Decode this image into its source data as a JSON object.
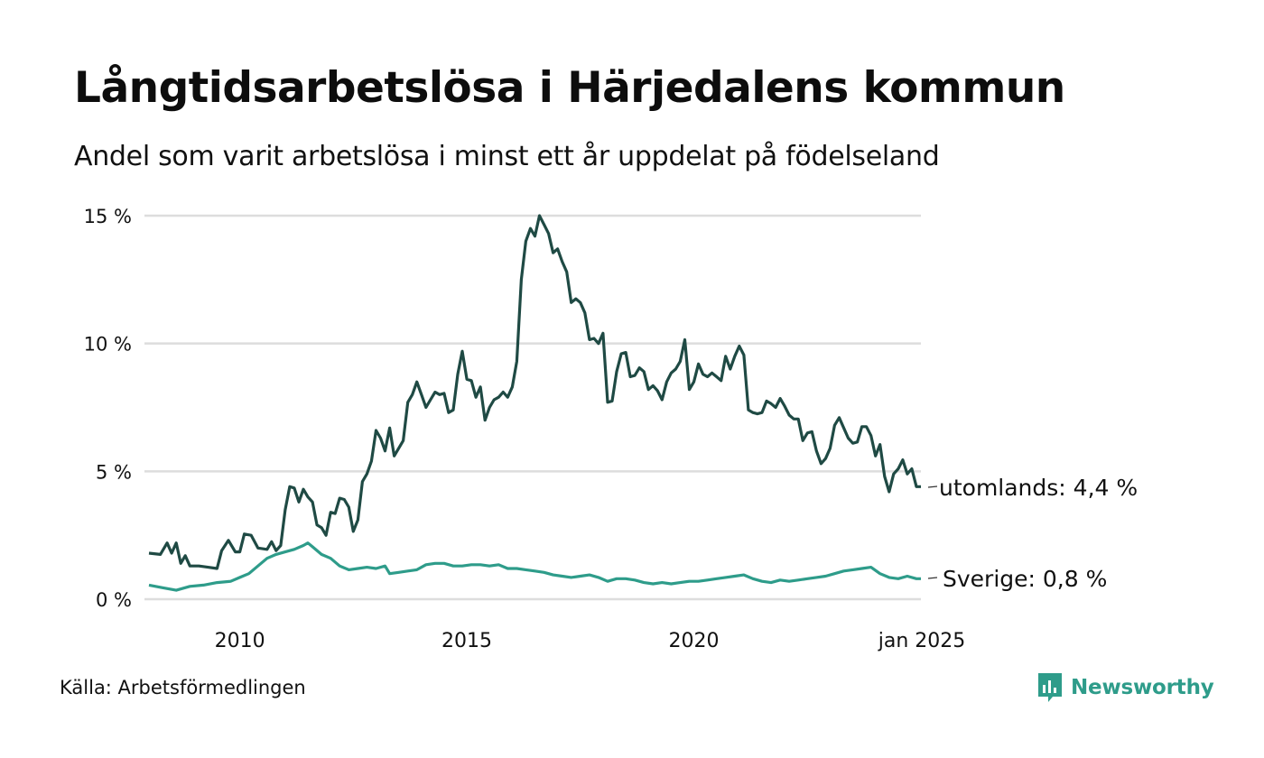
{
  "title": "Långtidsarbetslösa i Härjedalens kommun",
  "subtitle": "Andel som varit arbetslösa i minst ett år uppdelat på födelseland",
  "source": "Källa: Arbetsförmedlingen",
  "brand": {
    "name": "Newsworthy",
    "icon": "newsworthy-logo-icon",
    "color": "#2e9c8a"
  },
  "chart_data": {
    "type": "line",
    "title": "Långtidsarbetslösa i Härjedalens kommun",
    "subtitle": "Andel som varit arbetslösa i minst ett år uppdelat på födelseland",
    "x_axis": {
      "ticks": [
        {
          "label": "2010",
          "value": 2010.0
        },
        {
          "label": "2015",
          "value": 2015.0
        },
        {
          "label": "2020",
          "value": 2020.0
        },
        {
          "label": "jan 2025",
          "value": 2025.0
        }
      ],
      "range": [
        2008.0,
        2025.0
      ]
    },
    "y_axis": {
      "ticks": [
        {
          "label": "0 %",
          "value": 0
        },
        {
          "label": "5 %",
          "value": 5
        },
        {
          "label": "10 %",
          "value": 10
        },
        {
          "label": "15 %",
          "value": 15
        }
      ],
      "range": [
        0,
        15
      ],
      "unit": "%"
    },
    "grid": {
      "horizontal": true,
      "vertical": false,
      "color": "#dddddd"
    },
    "legend": "end-of-line labels",
    "series": [
      {
        "name": "utomlands",
        "end_label": "utomlands: 4,4 %",
        "color": "#1f4a44",
        "points": [
          [
            2008.0,
            1.8
          ],
          [
            2008.25,
            1.75
          ],
          [
            2008.4,
            2.2
          ],
          [
            2008.5,
            1.8
          ],
          [
            2008.6,
            2.2
          ],
          [
            2008.7,
            1.4
          ],
          [
            2008.8,
            1.7
          ],
          [
            2008.9,
            1.3
          ],
          [
            2009.1,
            1.3
          ],
          [
            2009.3,
            1.25
          ],
          [
            2009.5,
            1.2
          ],
          [
            2009.6,
            1.9
          ],
          [
            2009.75,
            2.3
          ],
          [
            2009.9,
            1.85
          ],
          [
            2010.0,
            1.85
          ],
          [
            2010.1,
            2.55
          ],
          [
            2010.25,
            2.5
          ],
          [
            2010.4,
            2.0
          ],
          [
            2010.6,
            1.95
          ],
          [
            2010.7,
            2.25
          ],
          [
            2010.8,
            1.9
          ],
          [
            2010.9,
            2.1
          ],
          [
            2011.0,
            3.5
          ],
          [
            2011.1,
            4.4
          ],
          [
            2011.2,
            4.35
          ],
          [
            2011.3,
            3.8
          ],
          [
            2011.4,
            4.3
          ],
          [
            2011.5,
            4.0
          ],
          [
            2011.6,
            3.8
          ],
          [
            2011.7,
            2.9
          ],
          [
            2011.8,
            2.8
          ],
          [
            2011.9,
            2.5
          ],
          [
            2012.0,
            3.4
          ],
          [
            2012.1,
            3.35
          ],
          [
            2012.2,
            3.95
          ],
          [
            2012.3,
            3.9
          ],
          [
            2012.4,
            3.6
          ],
          [
            2012.5,
            2.65
          ],
          [
            2012.6,
            3.1
          ],
          [
            2012.7,
            4.6
          ],
          [
            2012.8,
            4.9
          ],
          [
            2012.9,
            5.4
          ],
          [
            2013.0,
            6.6
          ],
          [
            2013.1,
            6.3
          ],
          [
            2013.2,
            5.8
          ],
          [
            2013.3,
            6.7
          ],
          [
            2013.4,
            5.6
          ],
          [
            2013.5,
            5.9
          ],
          [
            2013.6,
            6.2
          ],
          [
            2013.7,
            7.7
          ],
          [
            2013.8,
            8.0
          ],
          [
            2013.9,
            8.5
          ],
          [
            2014.0,
            8.0
          ],
          [
            2014.1,
            7.5
          ],
          [
            2014.2,
            7.8
          ],
          [
            2014.3,
            8.1
          ],
          [
            2014.4,
            8.0
          ],
          [
            2014.5,
            8.05
          ],
          [
            2014.6,
            7.3
          ],
          [
            2014.7,
            7.4
          ],
          [
            2014.8,
            8.8
          ],
          [
            2014.9,
            9.7
          ],
          [
            2015.0,
            8.6
          ],
          [
            2015.1,
            8.55
          ],
          [
            2015.2,
            7.9
          ],
          [
            2015.3,
            8.3
          ],
          [
            2015.4,
            7.0
          ],
          [
            2015.5,
            7.5
          ],
          [
            2015.6,
            7.8
          ],
          [
            2015.7,
            7.9
          ],
          [
            2015.8,
            8.1
          ],
          [
            2015.9,
            7.9
          ],
          [
            2016.0,
            8.3
          ],
          [
            2016.1,
            9.3
          ],
          [
            2016.2,
            12.5
          ],
          [
            2016.3,
            14.0
          ],
          [
            2016.4,
            14.5
          ],
          [
            2016.5,
            14.2
          ],
          [
            2016.6,
            15.0
          ],
          [
            2016.7,
            14.65
          ],
          [
            2016.8,
            14.3
          ],
          [
            2016.9,
            13.55
          ],
          [
            2017.0,
            13.7
          ],
          [
            2017.1,
            13.2
          ],
          [
            2017.2,
            12.8
          ],
          [
            2017.3,
            11.6
          ],
          [
            2017.4,
            11.75
          ],
          [
            2017.5,
            11.6
          ],
          [
            2017.6,
            11.2
          ],
          [
            2017.7,
            10.15
          ],
          [
            2017.8,
            10.2
          ],
          [
            2017.9,
            10.0
          ],
          [
            2018.0,
            10.4
          ],
          [
            2018.1,
            7.7
          ],
          [
            2018.2,
            7.75
          ],
          [
            2018.3,
            8.9
          ],
          [
            2018.4,
            9.6
          ],
          [
            2018.5,
            9.65
          ],
          [
            2018.6,
            8.7
          ],
          [
            2018.7,
            8.75
          ],
          [
            2018.8,
            9.05
          ],
          [
            2018.9,
            8.9
          ],
          [
            2019.0,
            8.2
          ],
          [
            2019.1,
            8.35
          ],
          [
            2019.2,
            8.15
          ],
          [
            2019.3,
            7.8
          ],
          [
            2019.4,
            8.5
          ],
          [
            2019.5,
            8.85
          ],
          [
            2019.6,
            9.0
          ],
          [
            2019.7,
            9.3
          ],
          [
            2019.8,
            10.15
          ],
          [
            2019.9,
            8.2
          ],
          [
            2020.0,
            8.5
          ],
          [
            2020.1,
            9.2
          ],
          [
            2020.2,
            8.8
          ],
          [
            2020.3,
            8.7
          ],
          [
            2020.4,
            8.85
          ],
          [
            2020.5,
            8.7
          ],
          [
            2020.6,
            8.55
          ],
          [
            2020.7,
            9.5
          ],
          [
            2020.8,
            9.0
          ],
          [
            2020.9,
            9.5
          ],
          [
            2021.0,
            9.9
          ],
          [
            2021.1,
            9.55
          ],
          [
            2021.2,
            7.4
          ],
          [
            2021.3,
            7.3
          ],
          [
            2021.4,
            7.25
          ],
          [
            2021.5,
            7.3
          ],
          [
            2021.6,
            7.75
          ],
          [
            2021.7,
            7.65
          ],
          [
            2021.8,
            7.5
          ],
          [
            2021.9,
            7.85
          ],
          [
            2022.0,
            7.55
          ],
          [
            2022.1,
            7.2
          ],
          [
            2022.2,
            7.05
          ],
          [
            2022.3,
            7.05
          ],
          [
            2022.4,
            6.2
          ],
          [
            2022.5,
            6.5
          ],
          [
            2022.6,
            6.55
          ],
          [
            2022.7,
            5.8
          ],
          [
            2022.8,
            5.3
          ],
          [
            2022.9,
            5.5
          ],
          [
            2023.0,
            5.9
          ],
          [
            2023.1,
            6.8
          ],
          [
            2023.2,
            7.1
          ],
          [
            2023.3,
            6.7
          ],
          [
            2023.4,
            6.3
          ],
          [
            2023.5,
            6.1
          ],
          [
            2023.6,
            6.15
          ],
          [
            2023.7,
            6.75
          ],
          [
            2023.8,
            6.75
          ],
          [
            2023.9,
            6.4
          ],
          [
            2024.0,
            5.6
          ],
          [
            2024.1,
            6.05
          ],
          [
            2024.2,
            4.8
          ],
          [
            2024.3,
            4.2
          ],
          [
            2024.4,
            4.9
          ],
          [
            2024.5,
            5.1
          ],
          [
            2024.6,
            5.45
          ],
          [
            2024.7,
            4.9
          ],
          [
            2024.8,
            5.1
          ],
          [
            2024.9,
            4.4
          ],
          [
            2025.0,
            4.4
          ]
        ]
      },
      {
        "name": "Sverige",
        "end_label": "Sverige: 0,8 %",
        "color": "#2e9c8a",
        "points": [
          [
            2008.0,
            0.55
          ],
          [
            2008.3,
            0.45
          ],
          [
            2008.6,
            0.35
          ],
          [
            2008.9,
            0.5
          ],
          [
            2009.2,
            0.55
          ],
          [
            2009.5,
            0.65
          ],
          [
            2009.8,
            0.7
          ],
          [
            2010.0,
            0.85
          ],
          [
            2010.2,
            1.0
          ],
          [
            2010.4,
            1.3
          ],
          [
            2010.6,
            1.6
          ],
          [
            2010.8,
            1.75
          ],
          [
            2011.0,
            1.85
          ],
          [
            2011.2,
            1.95
          ],
          [
            2011.4,
            2.1
          ],
          [
            2011.5,
            2.2
          ],
          [
            2011.6,
            2.05
          ],
          [
            2011.8,
            1.75
          ],
          [
            2012.0,
            1.6
          ],
          [
            2012.2,
            1.3
          ],
          [
            2012.4,
            1.15
          ],
          [
            2012.6,
            1.2
          ],
          [
            2012.8,
            1.25
          ],
          [
            2013.0,
            1.2
          ],
          [
            2013.2,
            1.3
          ],
          [
            2013.3,
            1.0
          ],
          [
            2013.5,
            1.05
          ],
          [
            2013.7,
            1.1
          ],
          [
            2013.9,
            1.15
          ],
          [
            2014.1,
            1.35
          ],
          [
            2014.3,
            1.4
          ],
          [
            2014.5,
            1.4
          ],
          [
            2014.7,
            1.3
          ],
          [
            2014.9,
            1.3
          ],
          [
            2015.1,
            1.35
          ],
          [
            2015.3,
            1.35
          ],
          [
            2015.5,
            1.3
          ],
          [
            2015.7,
            1.35
          ],
          [
            2015.9,
            1.2
          ],
          [
            2016.1,
            1.2
          ],
          [
            2016.3,
            1.15
          ],
          [
            2016.5,
            1.1
          ],
          [
            2016.7,
            1.05
          ],
          [
            2016.9,
            0.95
          ],
          [
            2017.1,
            0.9
          ],
          [
            2017.3,
            0.85
          ],
          [
            2017.5,
            0.9
          ],
          [
            2017.7,
            0.95
          ],
          [
            2017.9,
            0.85
          ],
          [
            2018.1,
            0.7
          ],
          [
            2018.3,
            0.8
          ],
          [
            2018.5,
            0.8
          ],
          [
            2018.7,
            0.75
          ],
          [
            2018.9,
            0.65
          ],
          [
            2019.1,
            0.6
          ],
          [
            2019.3,
            0.65
          ],
          [
            2019.5,
            0.6
          ],
          [
            2019.7,
            0.65
          ],
          [
            2019.9,
            0.7
          ],
          [
            2020.1,
            0.7
          ],
          [
            2020.3,
            0.75
          ],
          [
            2020.5,
            0.8
          ],
          [
            2020.7,
            0.85
          ],
          [
            2020.9,
            0.9
          ],
          [
            2021.1,
            0.95
          ],
          [
            2021.3,
            0.8
          ],
          [
            2021.5,
            0.7
          ],
          [
            2021.7,
            0.65
          ],
          [
            2021.9,
            0.75
          ],
          [
            2022.1,
            0.7
          ],
          [
            2022.3,
            0.75
          ],
          [
            2022.5,
            0.8
          ],
          [
            2022.7,
            0.85
          ],
          [
            2022.9,
            0.9
          ],
          [
            2023.1,
            1.0
          ],
          [
            2023.3,
            1.1
          ],
          [
            2023.5,
            1.15
          ],
          [
            2023.7,
            1.2
          ],
          [
            2023.9,
            1.25
          ],
          [
            2024.1,
            1.0
          ],
          [
            2024.3,
            0.85
          ],
          [
            2024.5,
            0.8
          ],
          [
            2024.7,
            0.9
          ],
          [
            2024.9,
            0.8
          ],
          [
            2025.0,
            0.8
          ]
        ]
      }
    ]
  }
}
